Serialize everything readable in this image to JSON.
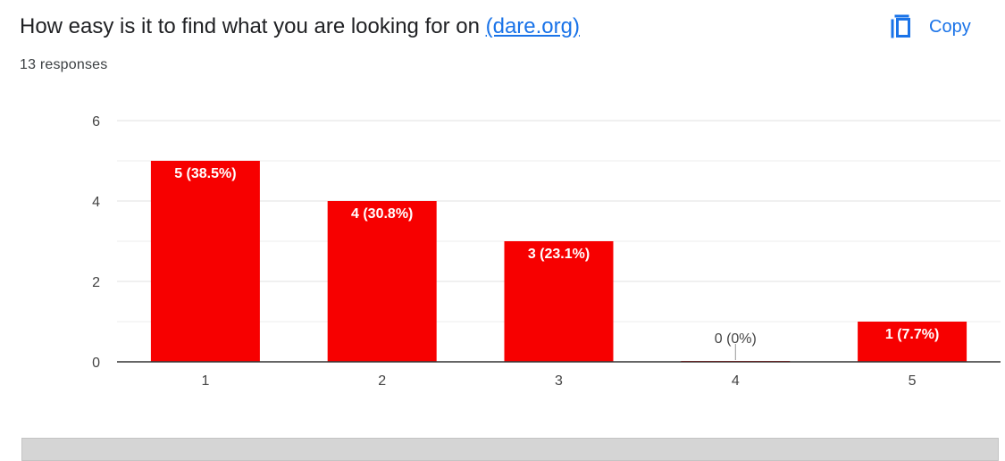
{
  "question": {
    "text": "How easy is it to find what you are looking for on",
    "link_text": "(dare.org)"
  },
  "responses_label": "13 responses",
  "copy_button": {
    "label": "Copy",
    "icon": "copy-icon"
  },
  "colors": {
    "bar": "#f70000",
    "accent": "#1a73e8",
    "axis": "#333333",
    "grid": "#e6e6e6"
  },
  "chart_data": {
    "type": "bar",
    "categories": [
      "1",
      "2",
      "3",
      "4",
      "5"
    ],
    "values": [
      5,
      4,
      3,
      0,
      1
    ],
    "data_labels": [
      "5 (38.5%)",
      "4 (30.8%)",
      "3 (23.1%)",
      "0 (0%)",
      "1 (7.7%)"
    ],
    "y_ticks": [
      "0",
      "2",
      "4",
      "6"
    ],
    "ylim": [
      0,
      6
    ],
    "grid": true,
    "legend": "none",
    "title": "",
    "xlabel": "",
    "ylabel": ""
  }
}
